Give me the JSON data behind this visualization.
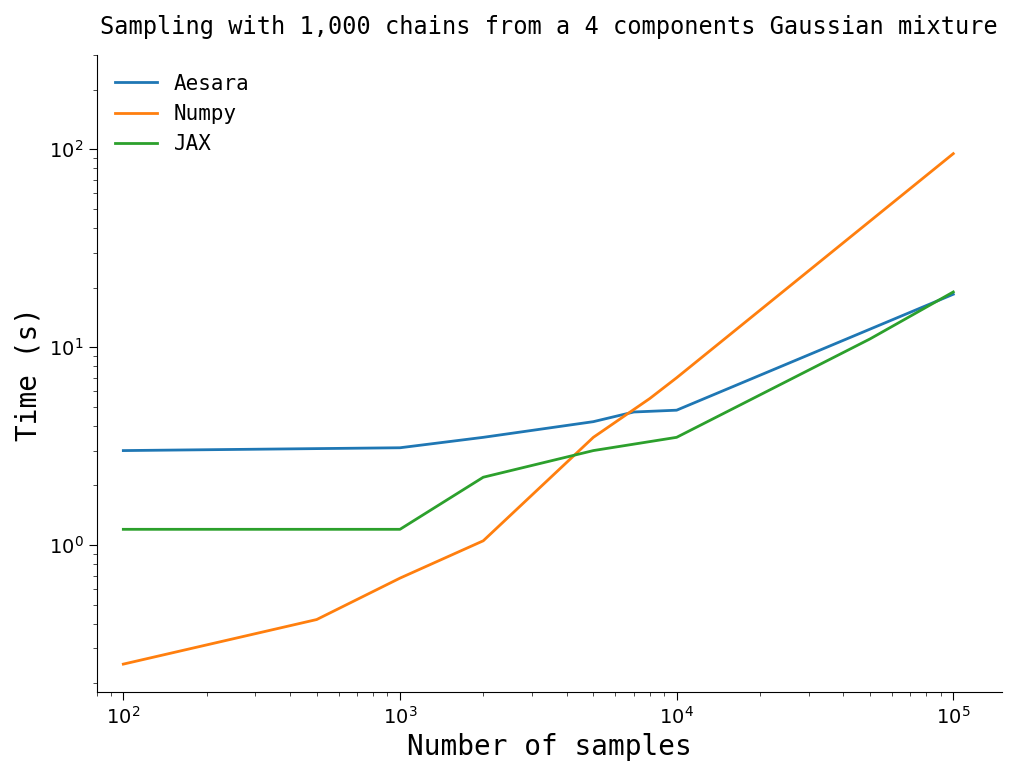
{
  "title": "Sampling with 1,000 chains from a 4 components Gaussian mixture",
  "xlabel": "Number of samples",
  "ylabel": "Time (s)",
  "title_fontsize": 17,
  "label_fontsize": 20,
  "tick_fontsize": 14,
  "legend_fontsize": 15,
  "background_color": "#ffffff",
  "series": [
    {
      "label": "Aesara",
      "color": "#1f77b4",
      "x": [
        100,
        1000,
        2000,
        5000,
        7000,
        10000,
        100000
      ],
      "y": [
        3.0,
        3.1,
        3.5,
        4.2,
        4.7,
        4.8,
        18.5
      ]
    },
    {
      "label": "Numpy",
      "color": "#ff7f0e",
      "x": [
        100,
        500,
        1000,
        2000,
        5000,
        8000,
        10000,
        100000
      ],
      "y": [
        0.25,
        0.42,
        0.68,
        1.05,
        3.5,
        5.5,
        7.0,
        95.0
      ]
    },
    {
      "label": "JAX",
      "color": "#2ca02c",
      "x": [
        100,
        1000,
        2000,
        5000,
        10000,
        50000,
        100000
      ],
      "y": [
        1.2,
        1.2,
        2.2,
        3.0,
        3.5,
        11.0,
        19.0
      ]
    }
  ],
  "xlim": [
    80,
    150000
  ],
  "ylim": [
    0.18,
    300
  ],
  "linewidth": 2.0
}
